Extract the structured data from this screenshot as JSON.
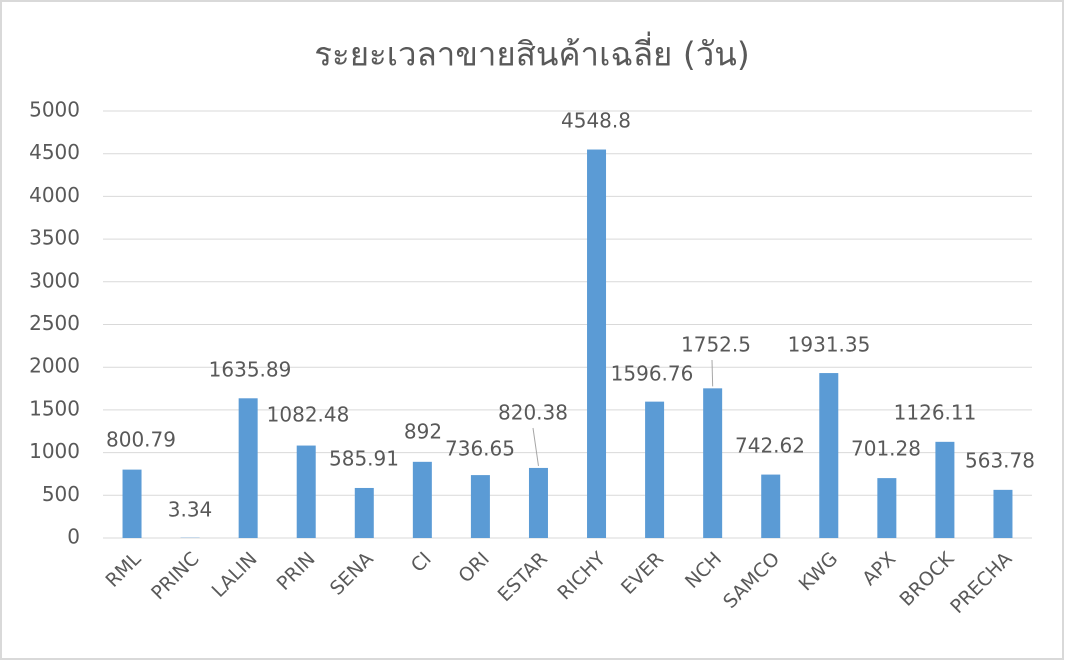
{
  "chart_data": {
    "type": "bar",
    "title": "ระยะเวลาขายสินค้าเฉลี่ย (วัน)",
    "categories": [
      "RML",
      "PRINC",
      "LALIN",
      "PRIN",
      "SENA",
      "CI",
      "ORI",
      "ESTAR",
      "RICHY",
      "EVER",
      "NCH",
      "SAMCO",
      "KWG",
      "APX",
      "BROCK",
      "PRECHA"
    ],
    "values": [
      800.79,
      3.34,
      1635.89,
      1082.48,
      585.91,
      892,
      736.65,
      820.38,
      4548.8,
      1596.76,
      1752.5,
      742.62,
      1931.35,
      701.28,
      1126.11,
      563.78
    ],
    "color": "#5b9bd5",
    "ylim": [
      0,
      5000
    ],
    "yticks": [
      0,
      500,
      1000,
      1500,
      2000,
      2500,
      3000,
      3500,
      4000,
      4500,
      5000
    ],
    "grid": true
  }
}
